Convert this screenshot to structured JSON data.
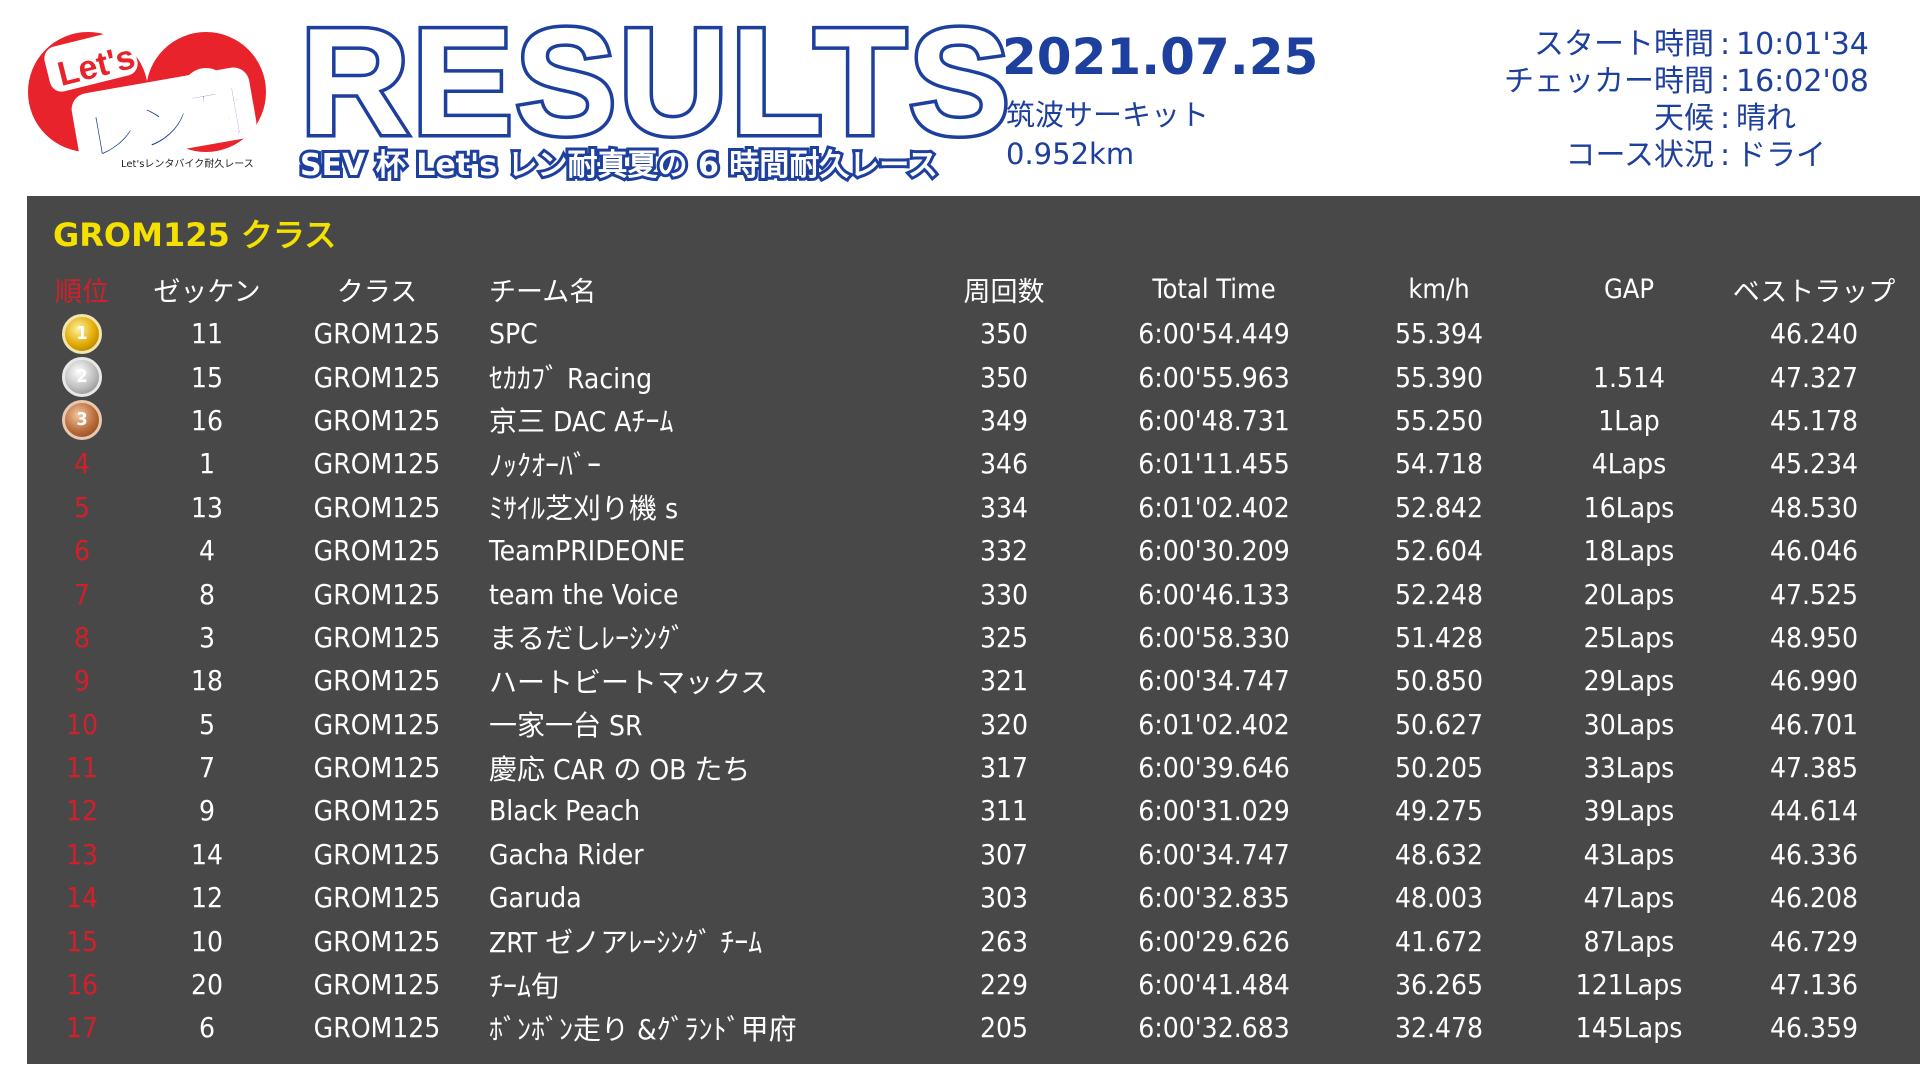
{
  "header": {
    "logo_text_top": "Let's",
    "logo_text_main": "レン耐",
    "logo_tagline": "Let'sレンタバイク耐久レース",
    "title": "RESULTS",
    "event_name": "SEV 杯 Let's レン耐真夏の 6 時間耐久レース",
    "date": "2021.07.25",
    "venue": "筑波サーキット",
    "distance": "0.952km",
    "info": [
      {
        "label": "スタート時間",
        "value": "10:01'34"
      },
      {
        "label": "チェッカー時間",
        "value": "16:02'08"
      },
      {
        "label": "天候",
        "value": "晴れ"
      },
      {
        "label": "コース状況",
        "value": "ドライ"
      }
    ],
    "info_separator": ":"
  },
  "colors": {
    "brand_blue": "#1d3f9e",
    "panel_bg": "#484848",
    "class_yellow": "#f4e100",
    "position_red": "#d2202a"
  },
  "results": {
    "class_title": "GROM125 クラス",
    "columns": {
      "position": "順位",
      "number": "ゼッケン",
      "class": "クラス",
      "team": "チーム名",
      "laps": "周回数",
      "total_time": "Total Time",
      "kmh": "km/h",
      "gap": "GAP",
      "best_lap": "ベストラップ"
    },
    "rows": [
      {
        "position": "1",
        "number": "11",
        "class": "GROM125",
        "team": "SPC",
        "laps": "350",
        "total_time": "6:00'54.449",
        "kmh": "55.394",
        "gap": "",
        "best_lap": "46.240",
        "medal": "gold-medal-icon"
      },
      {
        "position": "2",
        "number": "15",
        "class": "GROM125",
        "team": "ｾｶｶﾌﾞ Racing",
        "laps": "350",
        "total_time": "6:00'55.963",
        "kmh": "55.390",
        "gap": "1.514",
        "best_lap": "47.327",
        "medal": "silver-medal-icon"
      },
      {
        "position": "3",
        "number": "16",
        "class": "GROM125",
        "team": "京三 DAC Aﾁｰﾑ",
        "laps": "349",
        "total_time": "6:00'48.731",
        "kmh": "55.250",
        "gap": "1Lap",
        "best_lap": "45.178",
        "medal": "bronze-medal-icon"
      },
      {
        "position": "4",
        "number": "1",
        "class": "GROM125",
        "team": "ﾉｯｸｵｰﾊﾞｰ",
        "laps": "346",
        "total_time": "6:01'11.455",
        "kmh": "54.718",
        "gap": "4Laps",
        "best_lap": "45.234"
      },
      {
        "position": "5",
        "number": "13",
        "class": "GROM125",
        "team": "ﾐｻｲﾙ芝刈り機 s",
        "laps": "334",
        "total_time": "6:01'02.402",
        "kmh": "52.842",
        "gap": "16Laps",
        "best_lap": "48.530"
      },
      {
        "position": "6",
        "number": "4",
        "class": "GROM125",
        "team": "TeamPRIDEONE",
        "laps": "332",
        "total_time": "6:00'30.209",
        "kmh": "52.604",
        "gap": "18Laps",
        "best_lap": "46.046"
      },
      {
        "position": "7",
        "number": "8",
        "class": "GROM125",
        "team": "team the Voice",
        "laps": "330",
        "total_time": "6:00'46.133",
        "kmh": "52.248",
        "gap": "20Laps",
        "best_lap": "47.525"
      },
      {
        "position": "8",
        "number": "3",
        "class": "GROM125",
        "team": "まるだしﾚｰｼﾝｸﾞ",
        "laps": "325",
        "total_time": "6:00'58.330",
        "kmh": "51.428",
        "gap": "25Laps",
        "best_lap": "48.950"
      },
      {
        "position": "9",
        "number": "18",
        "class": "GROM125",
        "team": "ハートビートマックス",
        "laps": "321",
        "total_time": "6:00'34.747",
        "kmh": "50.850",
        "gap": "29Laps",
        "best_lap": "46.990"
      },
      {
        "position": "10",
        "number": "5",
        "class": "GROM125",
        "team": "一家一台 SR",
        "laps": "320",
        "total_time": "6:01'02.402",
        "kmh": "50.627",
        "gap": "30Laps",
        "best_lap": "46.701"
      },
      {
        "position": "11",
        "number": "7",
        "class": "GROM125",
        "team": "慶応 CAR の OB たち",
        "laps": "317",
        "total_time": "6:00'39.646",
        "kmh": "50.205",
        "gap": "33Laps",
        "best_lap": "47.385"
      },
      {
        "position": "12",
        "number": "9",
        "class": "GROM125",
        "team": "Black Peach",
        "laps": "311",
        "total_time": "6:00'31.029",
        "kmh": "49.275",
        "gap": "39Laps",
        "best_lap": "44.614"
      },
      {
        "position": "13",
        "number": "14",
        "class": "GROM125",
        "team": "Gacha Rider",
        "laps": "307",
        "total_time": "6:00'34.747",
        "kmh": "48.632",
        "gap": "43Laps",
        "best_lap": "46.336"
      },
      {
        "position": "14",
        "number": "12",
        "class": "GROM125",
        "team": "Garuda",
        "laps": "303",
        "total_time": "6:00'32.835",
        "kmh": "48.003",
        "gap": "47Laps",
        "best_lap": "46.208"
      },
      {
        "position": "15",
        "number": "10",
        "class": "GROM125",
        "team": "ZRT ゼノアﾚｰｼﾝｸﾞ ﾁｰﾑ",
        "laps": "263",
        "total_time": "6:00'29.626",
        "kmh": "41.672",
        "gap": "87Laps",
        "best_lap": "46.729"
      },
      {
        "position": "16",
        "number": "20",
        "class": "GROM125",
        "team": "ﾁｰﾑ旬",
        "laps": "229",
        "total_time": "6:00'41.484",
        "kmh": "36.265",
        "gap": "121Laps",
        "best_lap": "47.136"
      },
      {
        "position": "17",
        "number": "6",
        "class": "GROM125",
        "team": "ﾎﾞﾝﾎﾞﾝ走り &ｸﾞﾗﾝﾄﾞ甲府",
        "laps": "205",
        "total_time": "6:00'32.683",
        "kmh": "32.478",
        "gap": "145Laps",
        "best_lap": "46.359"
      }
    ]
  }
}
